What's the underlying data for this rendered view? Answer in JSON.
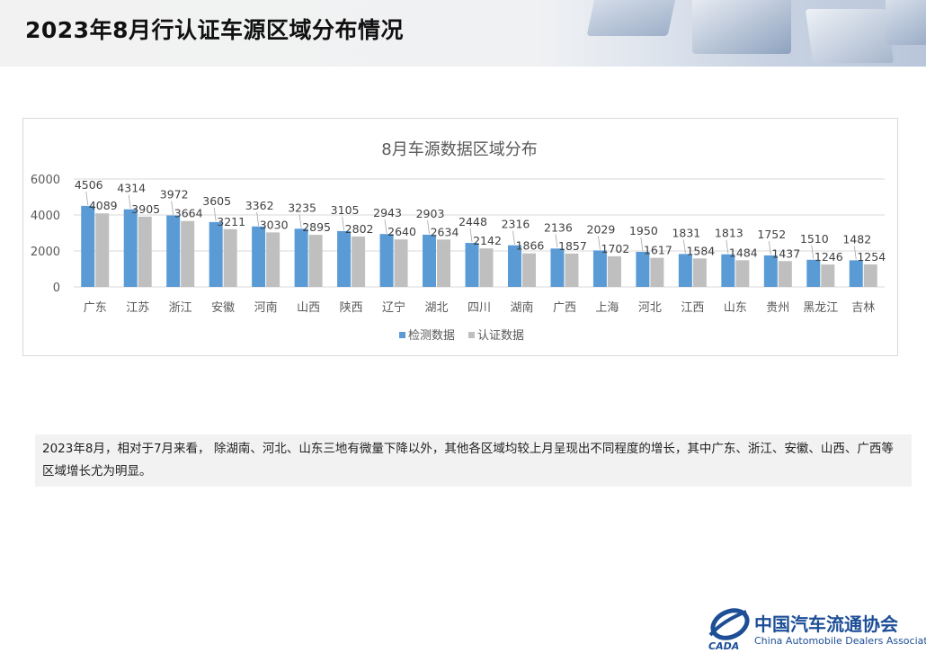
{
  "page": {
    "title": "2023年8月行认证车源区域分布情况"
  },
  "summary": "2023年8月，相对于7月来看， 除湖南、河北、山东三地有微量下降以外，其他各区域均较上月呈现出不同程度的增长，其中广东、浙江、安徽、山西、广西等区域增长尤为明显。",
  "logo": {
    "cn_name": "中国汽车流通协会",
    "en_name": "China Automobile Dealers Association",
    "mark_text": "CADA"
  },
  "chart_data": {
    "type": "bar",
    "title": "8月车源数据区域分布",
    "xlabel": "",
    "ylabel": "",
    "ylim": [
      0,
      6000
    ],
    "yticks": [
      0,
      2000,
      4000,
      6000
    ],
    "grid": true,
    "legend_position": "bottom",
    "categories": [
      "广东",
      "江苏",
      "浙江",
      "安徽",
      "河南",
      "山西",
      "陕西",
      "辽宁",
      "湖北",
      "四川",
      "湖南",
      "广西",
      "上海",
      "河北",
      "江西",
      "山东",
      "贵州",
      "黑龙江",
      "吉林"
    ],
    "series": [
      {
        "name": "检测数据",
        "color": "#5b9bd5",
        "values": [
          4506,
          4314,
          3972,
          3605,
          3362,
          3235,
          3105,
          2943,
          2903,
          2448,
          2316,
          2136,
          2029,
          1950,
          1831,
          1813,
          1752,
          1510,
          1482
        ]
      },
      {
        "name": "认证数据",
        "color": "#bfbfbf",
        "values": [
          4089,
          3905,
          3664,
          3211,
          3030,
          2895,
          2802,
          2640,
          2634,
          2142,
          1866,
          1857,
          1702,
          1617,
          1584,
          1484,
          1437,
          1246,
          1254
        ]
      }
    ]
  }
}
